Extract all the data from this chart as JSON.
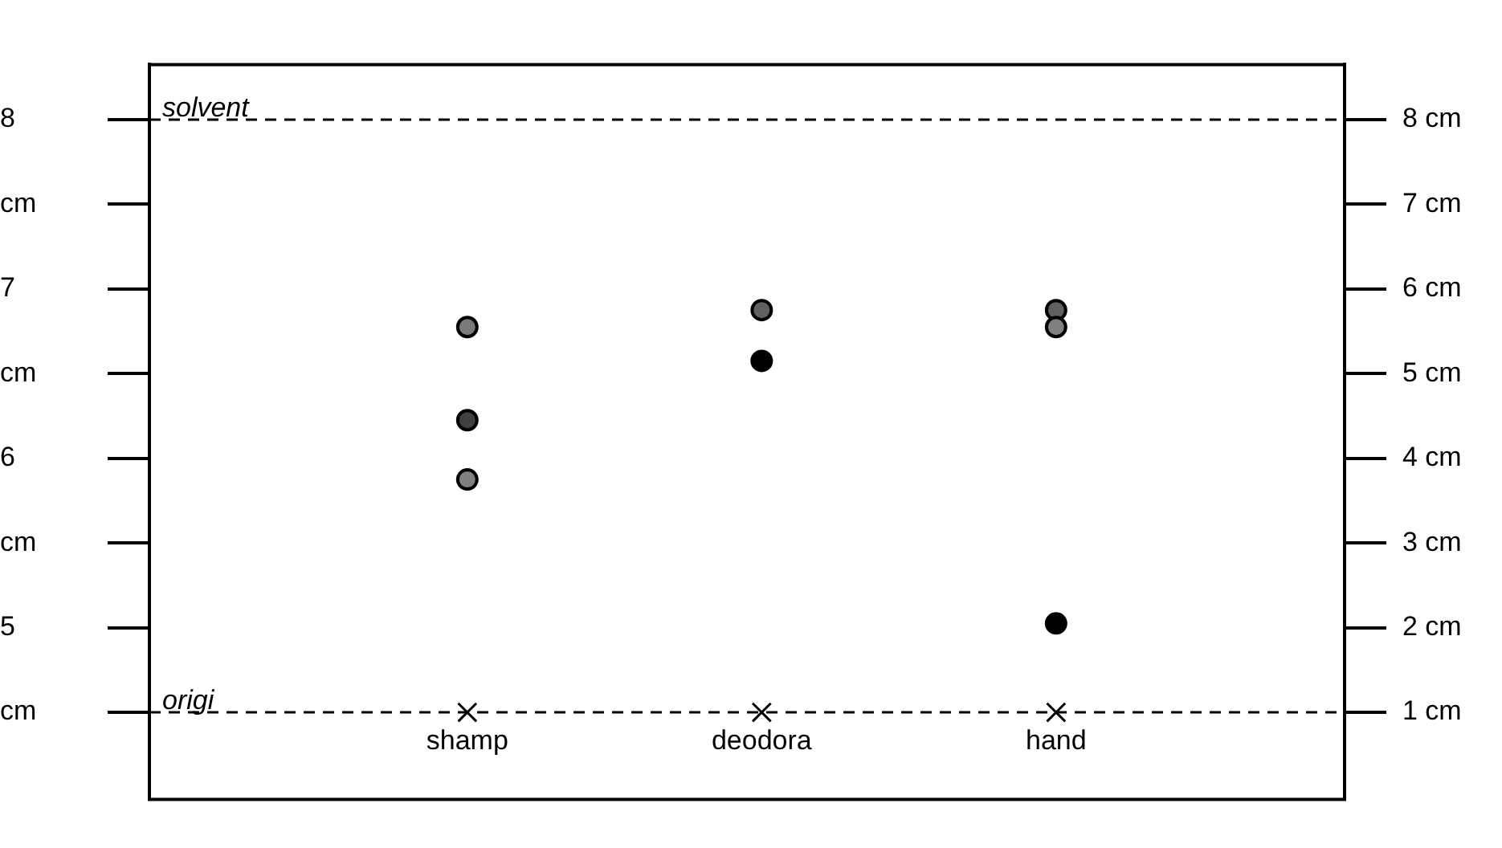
{
  "chart_data": {
    "type": "scatter",
    "categories": [
      "shamp",
      "deodora",
      "hand"
    ],
    "series": [
      {
        "axis": "y2",
        "marker": "circle",
        "x": [
          "shamp",
          "shamp",
          "shamp",
          "deodora",
          "deodora",
          "hand",
          "hand",
          "hand"
        ],
        "values": [
          5.55,
          4.45,
          3.75,
          5.75,
          5.15,
          5.75,
          5.55,
          2.05
        ],
        "colors": [
          "#7a7a7a",
          "#404040",
          "#808080",
          "#606060",
          "#000000",
          "#606060",
          "#808080",
          "#000000"
        ]
      },
      {
        "axis": "y2",
        "marker": "cross",
        "x": [
          "shamp",
          "deodora",
          "hand"
        ],
        "values": [
          1,
          1,
          1
        ],
        "color": "#000000"
      }
    ],
    "ylim": [
      4.08,
      8.325
    ],
    "yticks": [
      {
        "value": 4.5,
        "label": "cm"
      },
      {
        "value": 5,
        "label": "5"
      },
      {
        "value": 5.5,
        "label": "cm"
      },
      {
        "value": 6,
        "label": "6"
      },
      {
        "value": 6.5,
        "label": "cm"
      },
      {
        "value": 7,
        "label": "7"
      },
      {
        "value": 7.5,
        "label": "cm"
      },
      {
        "value": 8,
        "label": "8"
      }
    ],
    "y2lim": [
      0.16,
      8.65
    ],
    "y2ticks": [
      {
        "value": 1,
        "label": "1 cm"
      },
      {
        "value": 2,
        "label": "2 cm"
      },
      {
        "value": 3,
        "label": "3 cm"
      },
      {
        "value": 4,
        "label": "4 cm"
      },
      {
        "value": 5,
        "label": "5 cm"
      },
      {
        "value": 6,
        "label": "6 cm"
      },
      {
        "value": 7,
        "label": "7 cm"
      },
      {
        "value": 8,
        "label": "8 cm"
      }
    ],
    "ref_lines": [
      {
        "axis": "y2",
        "value": 8,
        "label": "solvent",
        "color": "#000000",
        "line_style": "dashed"
      },
      {
        "axis": "y2",
        "value": 1,
        "label": "origi",
        "color": "#000000",
        "line_style": "dashed"
      }
    ],
    "grid": false,
    "legend": false
  }
}
